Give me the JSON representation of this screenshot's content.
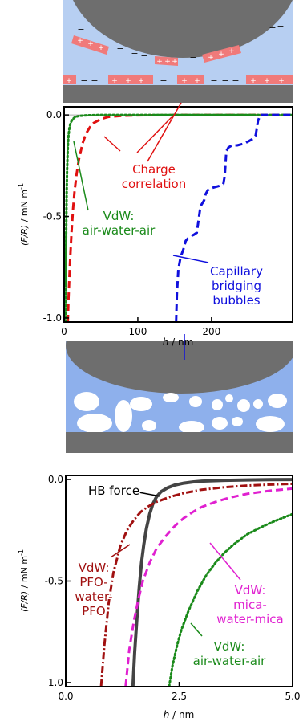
{
  "figure": {
    "schematic_top": {
      "plus_sign": "+",
      "minus_sign": "−",
      "colors": {
        "water": "#b7cff2",
        "solid": "#6e6e6e",
        "charge_patch": "#f07a7a"
      }
    },
    "schematic_bubbles": {
      "colors": {
        "background": "#8eb0ec",
        "bubble": "#ffffff",
        "solid": "#6e6e6e"
      }
    }
  },
  "chart_data": [
    {
      "type": "line",
      "title": "",
      "xlabel_italic": "h",
      "xlabel_unit": " / nm",
      "ylabel_italic": "(F/R)",
      "ylabel_unit": " / mN m",
      "ylabel_exp": "-1",
      "xlim": [
        0,
        310
      ],
      "ylim": [
        -1.02,
        0.04
      ],
      "xticks": [
        0,
        100,
        200
      ],
      "xtick_labels": [
        "0",
        "100",
        "200"
      ],
      "yticks": [
        0.0,
        -0.5,
        -1.0
      ],
      "ytick_labels": [
        "0.0",
        "-0.5",
        "-1.0"
      ],
      "zero_line": true,
      "series": [
        {
          "key": "charge",
          "color": "#e01010",
          "dash": "dash",
          "x": [
            5,
            6,
            8,
            10,
            12,
            14,
            17,
            20,
            25,
            30,
            35,
            40,
            50,
            60,
            80,
            100,
            130,
            160,
            200,
            250,
            310
          ],
          "y": [
            -1.02,
            -0.9,
            -0.72,
            -0.58,
            -0.47,
            -0.38,
            -0.29,
            -0.22,
            -0.14,
            -0.09,
            -0.06,
            -0.04,
            -0.02,
            -0.01,
            -0.004,
            -0.002,
            -0.001,
            0,
            0,
            0,
            0
          ]
        },
        {
          "key": "vdw",
          "color": "#1a8a1a",
          "dash": "dot",
          "x": [
            2,
            2.5,
            3,
            3.5,
            4,
            5,
            6,
            7,
            8,
            10,
            12,
            15,
            20,
            30,
            50,
            100,
            200,
            310
          ],
          "y": [
            -1.02,
            -0.7,
            -0.5,
            -0.37,
            -0.27,
            -0.16,
            -0.1,
            -0.07,
            -0.05,
            -0.03,
            -0.02,
            -0.01,
            -0.005,
            -0.002,
            0,
            0,
            0,
            0
          ]
        },
        {
          "key": "bubbles",
          "color": "#1010dd",
          "dash": "dash",
          "x": [
            152,
            153,
            155,
            158,
            162,
            165,
            170,
            176,
            180,
            185,
            190,
            192,
            195,
            200,
            210,
            216,
            218,
            220,
            223,
            228,
            235,
            245,
            255,
            260,
            263,
            266,
            270,
            280,
            310
          ],
          "y": [
            -1.02,
            -0.88,
            -0.76,
            -0.7,
            -0.66,
            -0.62,
            -0.6,
            -0.59,
            -0.58,
            -0.45,
            -0.42,
            -0.39,
            -0.37,
            -0.36,
            -0.35,
            -0.34,
            -0.3,
            -0.18,
            -0.16,
            -0.15,
            -0.15,
            -0.14,
            -0.12,
            -0.1,
            -0.03,
            0,
            0,
            0,
            0
          ]
        }
      ],
      "annotations": [
        {
          "key": "charge",
          "color": "#e01010",
          "lines": [
            "Charge",
            "correlation"
          ]
        },
        {
          "key": "vdw",
          "color": "#1a8a1a",
          "lines": [
            "VdW:",
            "air-water-air"
          ]
        },
        {
          "key": "bubbles",
          "color": "#1010dd",
          "lines": [
            "Capillary",
            "bridging",
            "bubbles"
          ]
        }
      ]
    },
    {
      "type": "line",
      "title": "",
      "xlabel_italic": "h",
      "xlabel_unit": " / nm",
      "ylabel_italic": "(F/R)",
      "ylabel_unit": " / mN m",
      "ylabel_exp": "-1",
      "xlim": [
        0,
        5.0
      ],
      "ylim": [
        -1.02,
        0.02
      ],
      "xticks": [
        0,
        2.5,
        5.0
      ],
      "xtick_labels": [
        "0.0",
        "2.5",
        "5.0"
      ],
      "yticks": [
        0.0,
        -0.5,
        -1.0
      ],
      "ytick_labels": [
        "0.0",
        "-0.5",
        "-1.0"
      ],
      "zero_line": false,
      "series": [
        {
          "key": "hb",
          "color": "#444444",
          "dash": "solid",
          "x": [
            1.48,
            1.52,
            1.57,
            1.62,
            1.67,
            1.72,
            1.78,
            1.85,
            1.92,
            2.0,
            2.1,
            2.25,
            2.4,
            2.6,
            2.8,
            3.0,
            3.5,
            4.0,
            4.5,
            5.0
          ],
          "y": [
            -1.02,
            -0.85,
            -0.68,
            -0.53,
            -0.41,
            -0.32,
            -0.24,
            -0.17,
            -0.12,
            -0.085,
            -0.06,
            -0.04,
            -0.028,
            -0.018,
            -0.012,
            -0.008,
            -0.004,
            -0.002,
            -0.001,
            0
          ]
        },
        {
          "key": "vdw_pfo",
          "color": "#a01010",
          "dash": "dashdot",
          "x": [
            0.78,
            0.85,
            0.95,
            1.05,
            1.2,
            1.35,
            1.5,
            1.65,
            1.8,
            2.0,
            2.3,
            2.6,
            3.0,
            3.5,
            4.0,
            4.5,
            5.0
          ],
          "y": [
            -1.02,
            -0.82,
            -0.6,
            -0.46,
            -0.33,
            -0.25,
            -0.2,
            -0.16,
            -0.135,
            -0.11,
            -0.085,
            -0.067,
            -0.05,
            -0.038,
            -0.03,
            -0.025,
            -0.021
          ]
        },
        {
          "key": "vdw_mica",
          "color": "#e020d0",
          "dash": "dash",
          "x": [
            1.32,
            1.4,
            1.5,
            1.6,
            1.7,
            1.85,
            2.0,
            2.2,
            2.4,
            2.6,
            2.8,
            3.0,
            3.3,
            3.6,
            4.0,
            4.5,
            5.0
          ],
          "y": [
            -1.02,
            -0.84,
            -0.7,
            -0.59,
            -0.5,
            -0.41,
            -0.34,
            -0.28,
            -0.23,
            -0.19,
            -0.16,
            -0.135,
            -0.11,
            -0.09,
            -0.07,
            -0.055,
            -0.045
          ]
        },
        {
          "key": "vdw_awa",
          "color": "#1a8a1a",
          "dash": "dot",
          "x": [
            2.28,
            2.35,
            2.45,
            2.55,
            2.7,
            2.9,
            3.1,
            3.3,
            3.5,
            3.7,
            4.0,
            4.3,
            4.6,
            5.0
          ],
          "y": [
            -1.02,
            -0.92,
            -0.82,
            -0.74,
            -0.65,
            -0.55,
            -0.47,
            -0.41,
            -0.36,
            -0.32,
            -0.27,
            -0.235,
            -0.205,
            -0.17
          ]
        }
      ],
      "annotations": [
        {
          "key": "hb",
          "color": "#000000",
          "lines": [
            "HB force"
          ]
        },
        {
          "key": "vdw_pfo",
          "color": "#a01010",
          "lines": [
            "VdW:",
            "PFO-",
            "water-",
            "PFO"
          ]
        },
        {
          "key": "vdw_mica",
          "color": "#e020d0",
          "lines": [
            "VdW:",
            "mica-",
            "water-mica"
          ]
        },
        {
          "key": "vdw_awa",
          "color": "#1a8a1a",
          "lines": [
            "VdW:",
            "air-water-air"
          ]
        }
      ]
    }
  ]
}
